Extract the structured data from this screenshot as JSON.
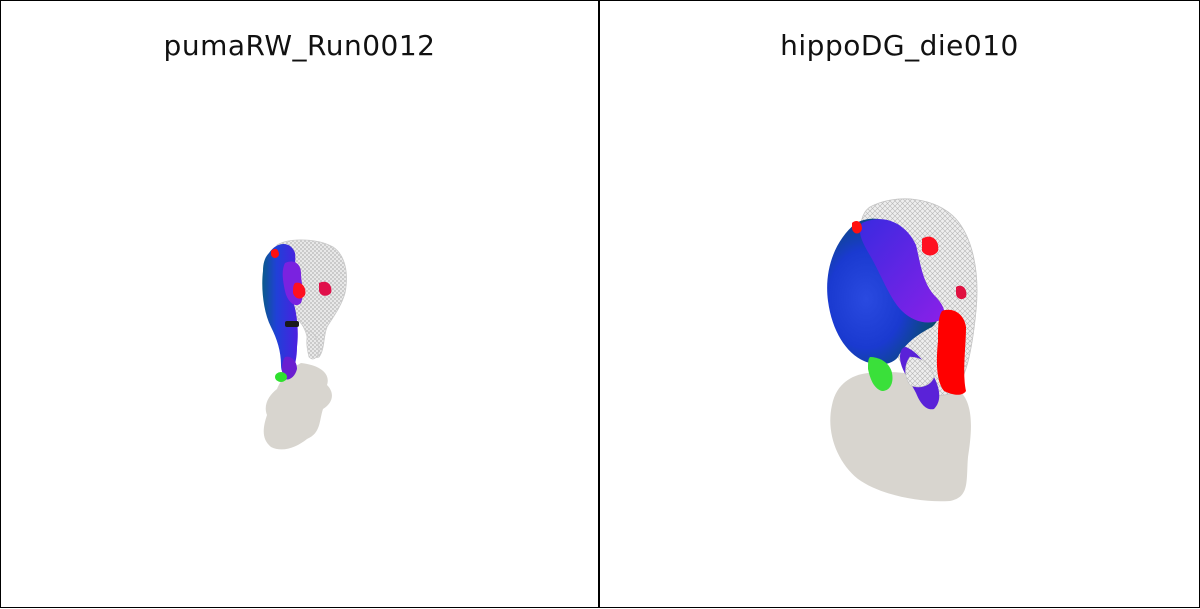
{
  "panels": [
    {
      "title": "pumaRW_Run0012",
      "subject": "puma"
    },
    {
      "title": "hippoDG_die010",
      "subject": "hippo"
    }
  ],
  "colors": {
    "background": "#ffffff",
    "border": "#000000",
    "shadow": "#d8d5cf",
    "mesh_gray": "#e6e6e6",
    "blue": "#1f2fd8",
    "blue_dark": "#0a3a6e",
    "purple": "#7a22e0",
    "red": "#ff0000",
    "green": "#2fe02f"
  }
}
